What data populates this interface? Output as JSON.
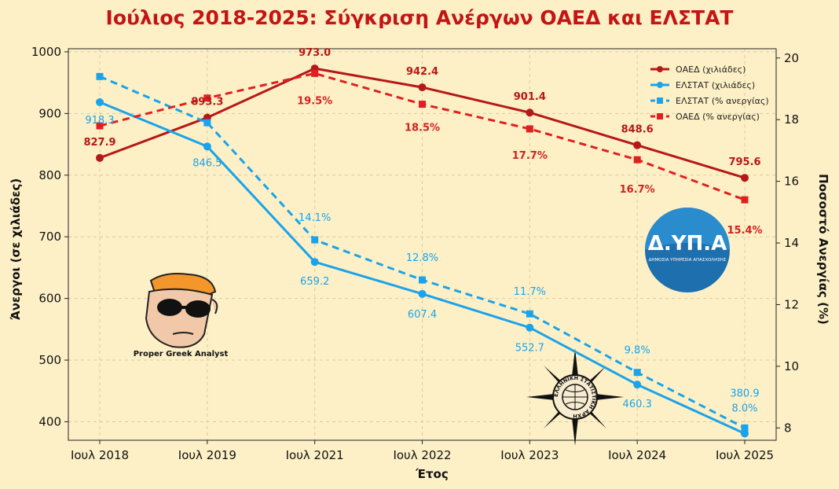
{
  "title": "Ιούλιος 2018-2025: Σύγκριση Ανέργων ΟΑΕΔ και ΕΛΣΤΑΤ",
  "colors": {
    "red": "#b51818",
    "red_dash": "#e02020",
    "blue": "#1aa3ea",
    "background": "#fdf0c6"
  },
  "chart_data": {
    "type": "line",
    "title": "Ιούλιος 2018-2025: Σύγκριση Ανέργων ΟΑΕΔ και ΕΛΣΤΑΤ",
    "xlabel": "Έτος",
    "ylabel": "Άνεργοι (σε χιλιάδες)",
    "y2label": "Ποσοστό Ανεργίας (%)",
    "categories": [
      "Ιουλ 2018",
      "Ιουλ 2019",
      "Ιουλ 2021",
      "Ιουλ 2022",
      "Ιουλ 2023",
      "Ιουλ 2024",
      "Ιουλ 2025"
    ],
    "ylim": [
      370,
      1005
    ],
    "yticks": [
      400,
      500,
      600,
      700,
      800,
      900,
      1000
    ],
    "y2lim": [
      7.6,
      20.3
    ],
    "y2ticks": [
      8,
      10,
      12,
      14,
      16,
      18,
      20
    ],
    "grid": true,
    "legend_position": "top-right",
    "series": [
      {
        "name": "ΟΑΕΔ (χιλιάδες)",
        "axis": "left",
        "style": "solid",
        "marker": "circle",
        "color": "#b51818",
        "values": [
          827.9,
          893.3,
          973.0,
          942.4,
          901.4,
          848.6,
          795.6
        ],
        "labels": [
          "827.9",
          "893.3",
          "973.0",
          "942.4",
          "901.4",
          "848.6",
          "795.6"
        ]
      },
      {
        "name": "ΕΛΣΤΑΤ (χιλιάδες)",
        "axis": "left",
        "style": "solid",
        "marker": "circle",
        "color": "#1aa3ea",
        "values": [
          918.3,
          846.5,
          659.2,
          607.4,
          552.7,
          460.3,
          380.9
        ],
        "labels": [
          "918.3",
          "846.5",
          "659.2",
          "607.4",
          "552.7",
          "460.3",
          "380.9"
        ]
      },
      {
        "name": "ΕΛΣΤΑΤ (% ανεργίας)",
        "axis": "right",
        "style": "dashed",
        "marker": "square",
        "color": "#1aa3ea",
        "values": [
          19.4,
          17.9,
          14.1,
          12.8,
          11.7,
          9.8,
          8.0
        ],
        "labels": [
          "",
          "",
          "14.1%",
          "12.8%",
          "11.7%",
          "9.8%",
          "8.0%"
        ]
      },
      {
        "name": "ΟΑΕΔ (% ανεργίας)",
        "axis": "right",
        "style": "dashed",
        "marker": "square",
        "color": "#e02020",
        "values": [
          17.8,
          18.7,
          19.5,
          18.5,
          17.7,
          16.7,
          15.4
        ],
        "labels": [
          "",
          "",
          "19.5%",
          "18.5%",
          "17.7%",
          "16.7%",
          "15.4%"
        ]
      }
    ]
  },
  "logos": {
    "analyst_caption": "Proper Greek Analyst",
    "dypa_name": "Δ.ΥΠ.Α",
    "dypa_subtitle": "ΔΗΜΟΣΙΑ ΥΠΗΡΕΣΙΑ ΑΠΑΣΧΟΛΗΣΗΣ",
    "elstat_ring": "ΕΛΛΗΝΙΚΗ ΣΤΑΤΙΣΤΙΚΗ ΑΡΧΗ"
  }
}
